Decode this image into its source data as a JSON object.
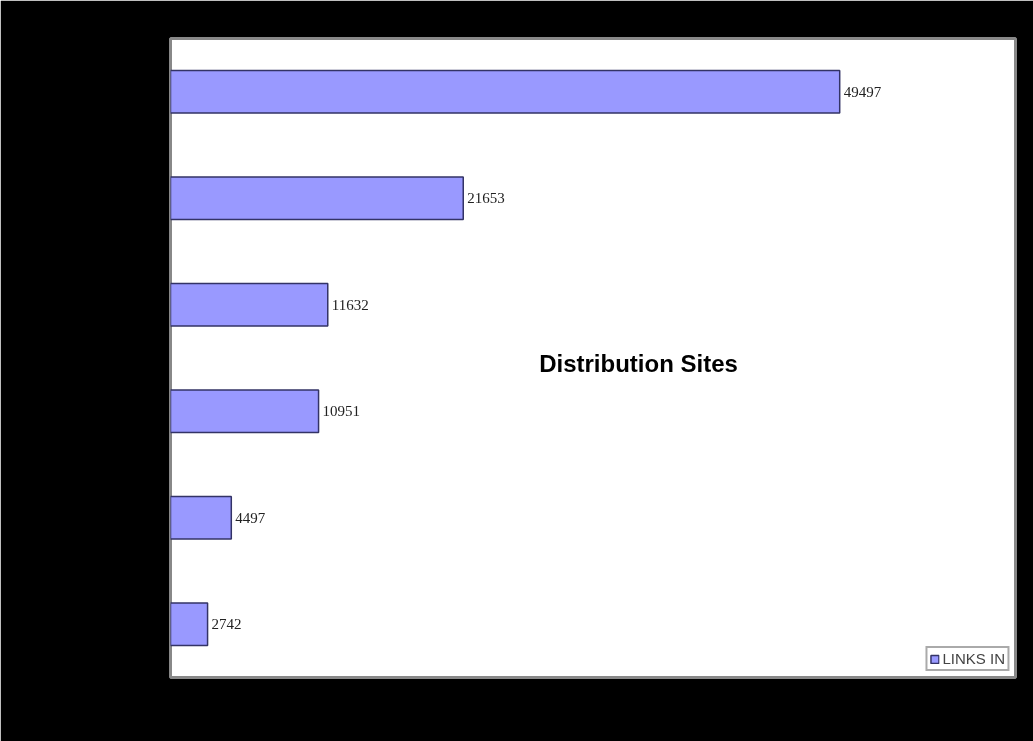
{
  "chart_data": {
    "type": "bar",
    "orientation": "horizontal",
    "title": "Distribution Sites",
    "categories": [
      null,
      null,
      null,
      null,
      null,
      null
    ],
    "series": [
      {
        "name": "LINKS IN",
        "color": "#9999ff",
        "values": [
          49497,
          21653,
          11632,
          10951,
          4497,
          2742
        ]
      }
    ],
    "xlim": [
      0,
      62500
    ],
    "tick_labels": false,
    "grid": false,
    "data_labels": true,
    "legend": "bottom right"
  }
}
